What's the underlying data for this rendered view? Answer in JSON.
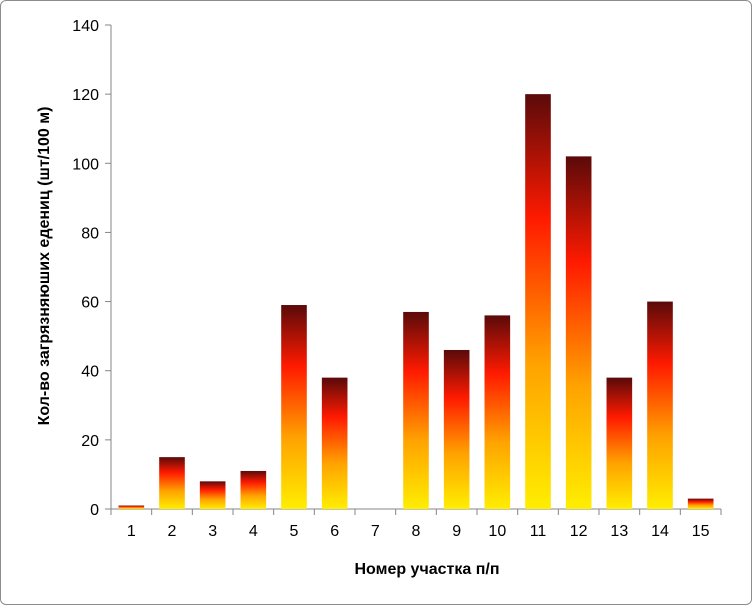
{
  "chart_data": {
    "type": "bar",
    "xlabel": "Номер участка п/п",
    "ylabel": "Кол-во загрязняюших едениц (шт/100 м)",
    "categories": [
      "1",
      "2",
      "3",
      "4",
      "5",
      "6",
      "7",
      "8",
      "9",
      "10",
      "11",
      "12",
      "13",
      "14",
      "15"
    ],
    "values": [
      1,
      15,
      8,
      11,
      59,
      38,
      0,
      57,
      46,
      56,
      120,
      102,
      38,
      60,
      3
    ],
    "ylim": [
      0,
      140
    ],
    "yticks": [
      "0",
      "20",
      "40",
      "60",
      "80",
      "100",
      "120",
      "140"
    ],
    "grid": false,
    "legend": "none",
    "colors": {
      "gradient_bottom": "#ffee00",
      "gradient_lower": "#ffa200",
      "gradient_upper": "#ff1a00",
      "gradient_top": "#5a0a0a",
      "axis": "#868686"
    }
  }
}
